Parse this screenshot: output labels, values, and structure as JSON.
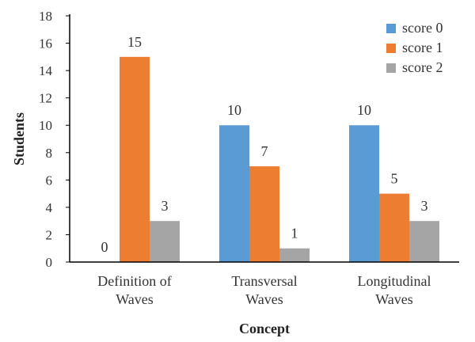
{
  "chart_data": {
    "type": "bar",
    "categories": [
      [
        "Definition of",
        "Waves"
      ],
      [
        "Transversal",
        "Waves"
      ],
      [
        "Longitudinal",
        "Waves"
      ]
    ],
    "series": [
      {
        "name": "score 0",
        "values": [
          0,
          10,
          10
        ],
        "color": "#5b9bd5"
      },
      {
        "name": "score 1",
        "values": [
          15,
          7,
          5
        ],
        "color": "#ed7d31"
      },
      {
        "name": "score 2",
        "values": [
          3,
          1,
          3
        ],
        "color": "#a5a5a5"
      }
    ],
    "xlabel": "Concept",
    "ylabel": "Students",
    "ylim": [
      0,
      18
    ],
    "yticks": [
      0,
      2,
      4,
      6,
      8,
      10,
      12,
      14,
      16,
      18
    ],
    "grid": false,
    "legend": "top-right"
  }
}
